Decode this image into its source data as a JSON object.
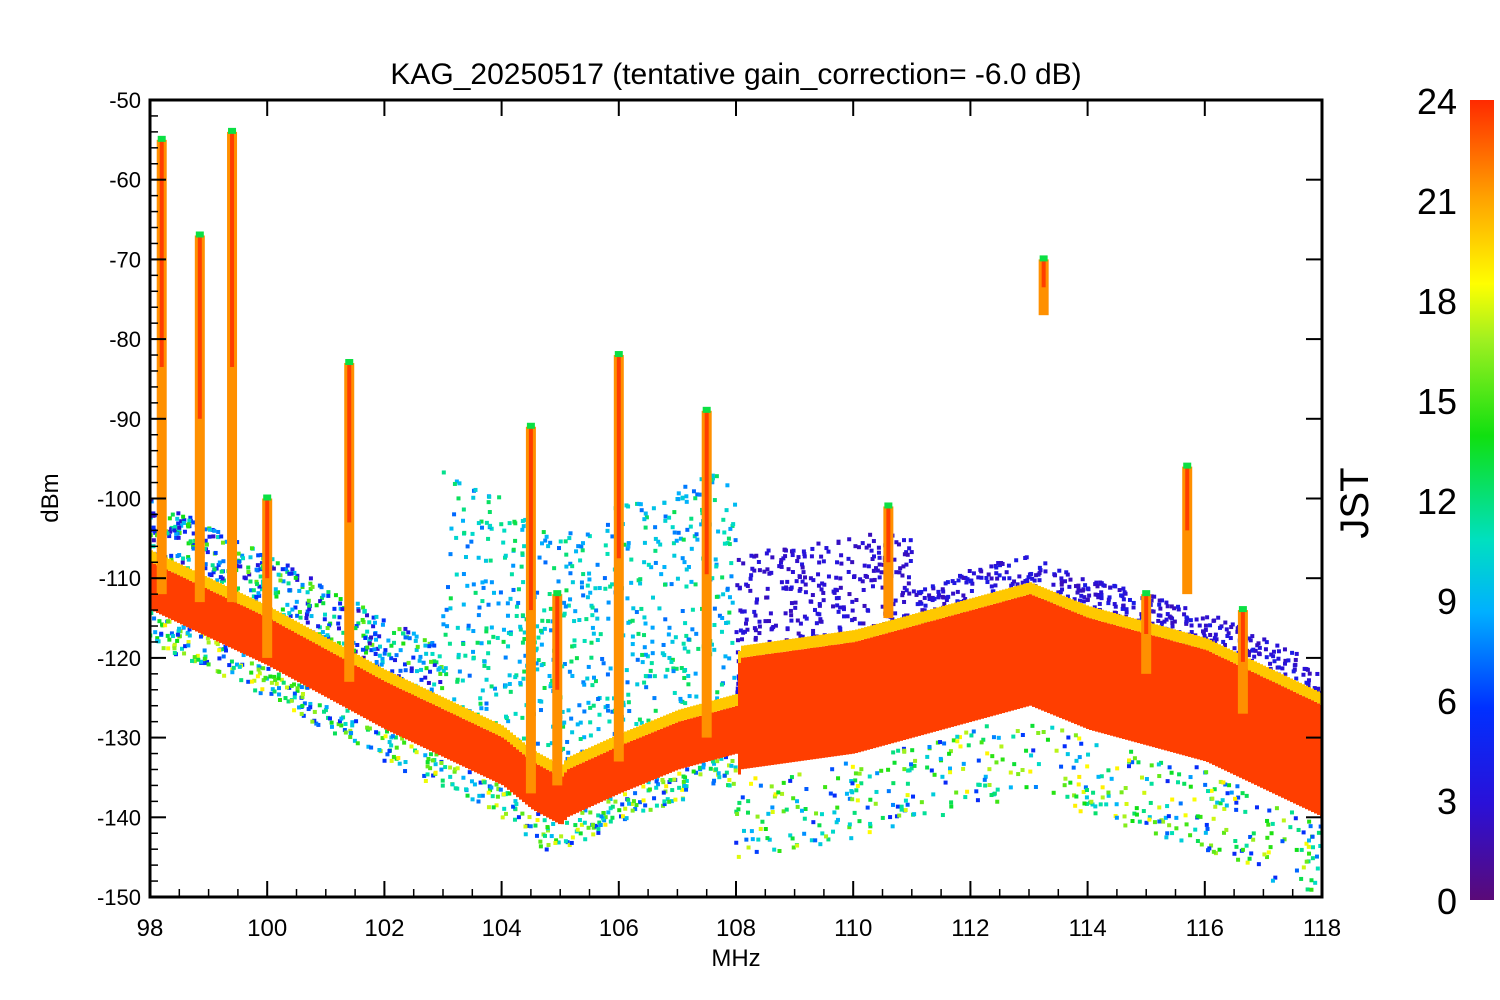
{
  "chart_data": {
    "type": "scatter",
    "title": "KAG_20250517 (tentative gain_correction= -6.0 dB)",
    "xlabel": "MHz",
    "ylabel": "dBm",
    "xlim": [
      98,
      118
    ],
    "ylim": [
      -150,
      -50
    ],
    "x_ticks": [
      "98",
      "100",
      "102",
      "104",
      "106",
      "108",
      "110",
      "112",
      "114",
      "116",
      "118"
    ],
    "y_ticks": [
      "-50",
      "-60",
      "-70",
      "-80",
      "-90",
      "-100",
      "-110",
      "-120",
      "-130",
      "-140",
      "-150"
    ],
    "colorbar": {
      "label": "JST",
      "range": [
        0,
        24
      ],
      "ticks": [
        "0",
        "3",
        "6",
        "9",
        "12",
        "15",
        "18",
        "21",
        "24"
      ],
      "colormap": "rainbow"
    },
    "noise_floor": {
      "x": [
        98,
        100,
        102,
        104,
        104.5,
        105,
        105.1,
        106,
        107,
        108,
        108.05,
        110,
        112,
        113,
        114,
        116,
        118
      ],
      "y": [
        -111,
        -118,
        -126,
        -133,
        -136,
        -138,
        -137,
        -134,
        -131,
        -129,
        -127,
        -125,
        -121,
        -119,
        -122,
        -126,
        -133
      ]
    },
    "floor_color_jst": 23.5,
    "signal_columns": [
      {
        "x": 98.2,
        "top": -55,
        "bottom": -112
      },
      {
        "x": 98.85,
        "top": -67,
        "bottom": -113
      },
      {
        "x": 99.4,
        "top": -54,
        "bottom": -113
      },
      {
        "x": 100.0,
        "top": -100,
        "bottom": -120
      },
      {
        "x": 101.4,
        "top": -83,
        "bottom": -123
      },
      {
        "x": 104.5,
        "top": -91,
        "bottom": -137
      },
      {
        "x": 104.95,
        "top": -112,
        "bottom": -136
      },
      {
        "x": 106.0,
        "top": -82,
        "bottom": -133
      },
      {
        "x": 107.5,
        "top": -89,
        "bottom": -130
      },
      {
        "x": 110.6,
        "top": -101,
        "bottom": -115
      },
      {
        "x": 113.25,
        "top": -70,
        "bottom": -77
      },
      {
        "x": 115.0,
        "top": -112,
        "bottom": -122
      },
      {
        "x": 115.7,
        "top": -96,
        "bottom": -112
      },
      {
        "x": 116.65,
        "top": -114,
        "bottom": -127
      }
    ]
  }
}
